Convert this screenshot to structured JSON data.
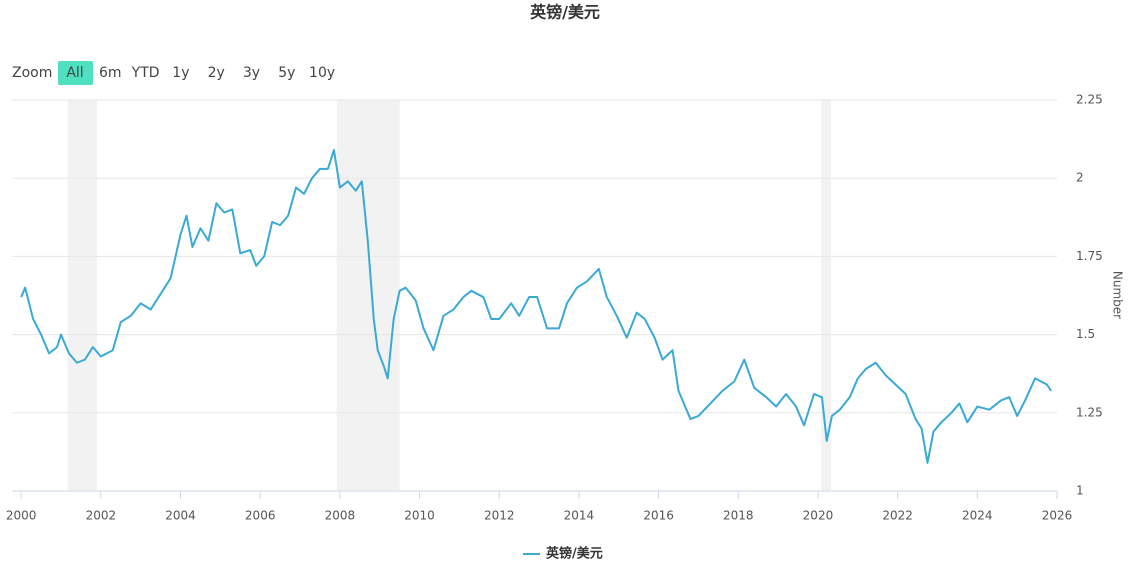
{
  "chart_data": {
    "type": "line",
    "title": "英镑/美元",
    "y_axis_label": "Number",
    "range_selector": {
      "label": "Zoom",
      "buttons": [
        "All",
        "6m",
        "YTD",
        "1y",
        "2y",
        "3y",
        "5y",
        "10y"
      ],
      "selected": 0
    },
    "xlim": [
      1999.77,
      2026
    ],
    "xticks": [
      2000,
      2002,
      2004,
      2006,
      2008,
      2010,
      2012,
      2014,
      2016,
      2018,
      2020,
      2022,
      2024,
      2026
    ],
    "ylim": [
      1,
      2.25
    ],
    "yticks": [
      1,
      1.25,
      1.5,
      1.75,
      2,
      2.25
    ],
    "grid": true,
    "shaded_ranges": [
      [
        2001.17,
        2001.9
      ],
      [
        2007.92,
        2009.5
      ],
      [
        2020.08,
        2020.33
      ]
    ],
    "x": [
      2000.0,
      2000.1,
      2000.3,
      2000.5,
      2000.7,
      2000.9,
      2001.0,
      2001.2,
      2001.4,
      2001.6,
      2001.8,
      2002.0,
      2002.3,
      2002.5,
      2002.75,
      2003.0,
      2003.25,
      2003.5,
      2003.75,
      2004.0,
      2004.15,
      2004.3,
      2004.5,
      2004.7,
      2004.9,
      2005.1,
      2005.3,
      2005.5,
      2005.75,
      2005.9,
      2006.1,
      2006.3,
      2006.5,
      2006.7,
      2006.9,
      2007.1,
      2007.3,
      2007.5,
      2007.7,
      2007.85,
      2008.0,
      2008.2,
      2008.4,
      2008.55,
      2008.7,
      2008.85,
      2008.95,
      2009.1,
      2009.2,
      2009.35,
      2009.5,
      2009.65,
      2009.9,
      2010.1,
      2010.35,
      2010.6,
      2010.85,
      2011.1,
      2011.3,
      2011.6,
      2011.8,
      2012.0,
      2012.3,
      2012.5,
      2012.75,
      2012.95,
      2013.2,
      2013.5,
      2013.7,
      2013.95,
      2014.2,
      2014.5,
      2014.7,
      2014.95,
      2015.2,
      2015.45,
      2015.65,
      2015.9,
      2016.1,
      2016.35,
      2016.5,
      2016.8,
      2017.0,
      2017.3,
      2017.6,
      2017.9,
      2018.15,
      2018.4,
      2018.7,
      2018.95,
      2019.2,
      2019.45,
      2019.65,
      2019.9,
      2020.1,
      2020.22,
      2020.35,
      2020.55,
      2020.8,
      2021.0,
      2021.2,
      2021.45,
      2021.7,
      2021.95,
      2022.2,
      2022.45,
      2022.6,
      2022.75,
      2022.9,
      2023.1,
      2023.35,
      2023.55,
      2023.75,
      2024.0,
      2024.3,
      2024.6,
      2024.8,
      2025.0,
      2025.2,
      2025.45,
      2025.6,
      2025.75,
      2025.85
    ],
    "series": [
      {
        "name": "英镑/美元",
        "color": "#3aa9d6",
        "values": [
          1.62,
          1.65,
          1.55,
          1.5,
          1.44,
          1.46,
          1.5,
          1.44,
          1.41,
          1.42,
          1.46,
          1.43,
          1.45,
          1.54,
          1.56,
          1.6,
          1.58,
          1.63,
          1.68,
          1.82,
          1.88,
          1.78,
          1.84,
          1.8,
          1.92,
          1.89,
          1.9,
          1.76,
          1.77,
          1.72,
          1.75,
          1.86,
          1.85,
          1.88,
          1.97,
          1.95,
          2.0,
          2.03,
          2.03,
          2.09,
          1.97,
          1.99,
          1.96,
          1.99,
          1.8,
          1.55,
          1.45,
          1.4,
          1.36,
          1.55,
          1.64,
          1.65,
          1.61,
          1.52,
          1.45,
          1.56,
          1.58,
          1.62,
          1.64,
          1.62,
          1.55,
          1.55,
          1.6,
          1.56,
          1.62,
          1.62,
          1.52,
          1.52,
          1.6,
          1.65,
          1.67,
          1.71,
          1.62,
          1.56,
          1.49,
          1.57,
          1.55,
          1.49,
          1.42,
          1.45,
          1.32,
          1.23,
          1.24,
          1.28,
          1.32,
          1.35,
          1.42,
          1.33,
          1.3,
          1.27,
          1.31,
          1.27,
          1.21,
          1.31,
          1.3,
          1.16,
          1.24,
          1.26,
          1.3,
          1.36,
          1.39,
          1.41,
          1.37,
          1.34,
          1.31,
          1.23,
          1.2,
          1.09,
          1.19,
          1.22,
          1.25,
          1.28,
          1.22,
          1.27,
          1.26,
          1.29,
          1.3,
          1.24,
          1.29,
          1.36,
          1.35,
          1.34,
          1.32
        ]
      }
    ]
  }
}
